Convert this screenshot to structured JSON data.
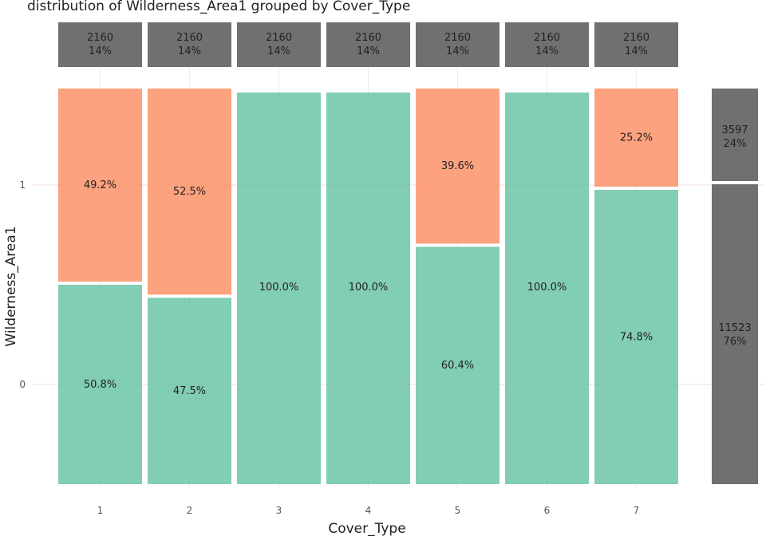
{
  "chart_data": {
    "type": "bar",
    "subtype": "mosaic",
    "title": "distribution of Wilderness_Area1 grouped by Cover_Type",
    "xlabel": "Cover_Type",
    "ylabel": "Wilderness_Area1",
    "categories": [
      "1",
      "2",
      "3",
      "4",
      "5",
      "6",
      "7"
    ],
    "y_ticks": [
      "0",
      "1"
    ],
    "series": [
      {
        "name": "0",
        "color": "#66c2a5",
        "values": [
          50.8,
          47.5,
          100.0,
          100.0,
          60.4,
          100.0,
          74.8
        ]
      },
      {
        "name": "1",
        "color": "#fc8d62",
        "values": [
          49.2,
          52.5,
          0.0,
          0.0,
          39.6,
          0.0,
          25.2
        ]
      }
    ],
    "segment_labels": {
      "0": [
        "50.8%",
        "47.5%",
        "100.0%",
        "100.0%",
        "60.4%",
        "100.0%",
        "74.8%"
      ],
      "1": [
        "49.2%",
        "52.5%",
        "",
        "",
        "39.6%",
        "",
        "25.2%"
      ]
    },
    "column_totals": [
      {
        "count": "2160",
        "pct": "14%"
      },
      {
        "count": "2160",
        "pct": "14%"
      },
      {
        "count": "2160",
        "pct": "14%"
      },
      {
        "count": "2160",
        "pct": "14%"
      },
      {
        "count": "2160",
        "pct": "14%"
      },
      {
        "count": "2160",
        "pct": "14%"
      },
      {
        "count": "2160",
        "pct": "14%"
      }
    ],
    "row_totals": [
      {
        "category": "0",
        "count": "11523",
        "pct": "76%"
      },
      {
        "category": "1",
        "count": "3597",
        "pct": "24%"
      }
    ],
    "total_color": "#707070",
    "grid": true,
    "legend": "none"
  }
}
